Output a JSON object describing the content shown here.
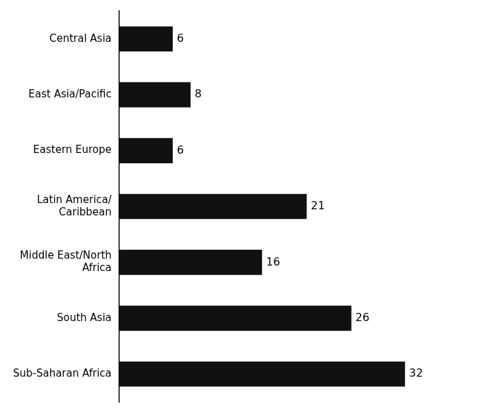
{
  "chart_data": {
    "type": "bar",
    "orientation": "horizontal",
    "categories": [
      "Central Asia",
      "East Asia/Pacific",
      "Eastern Europe",
      "Latin America/\nCaribbean",
      "Middle East/North\nAfrica",
      "South Asia",
      "Sub-Saharan Africa"
    ],
    "values": [
      6,
      8,
      6,
      21,
      16,
      26,
      32
    ],
    "color": "#111111",
    "xlim": [
      0,
      38
    ],
    "data_labels": true,
    "tick_labels": "y",
    "grid": false
  }
}
